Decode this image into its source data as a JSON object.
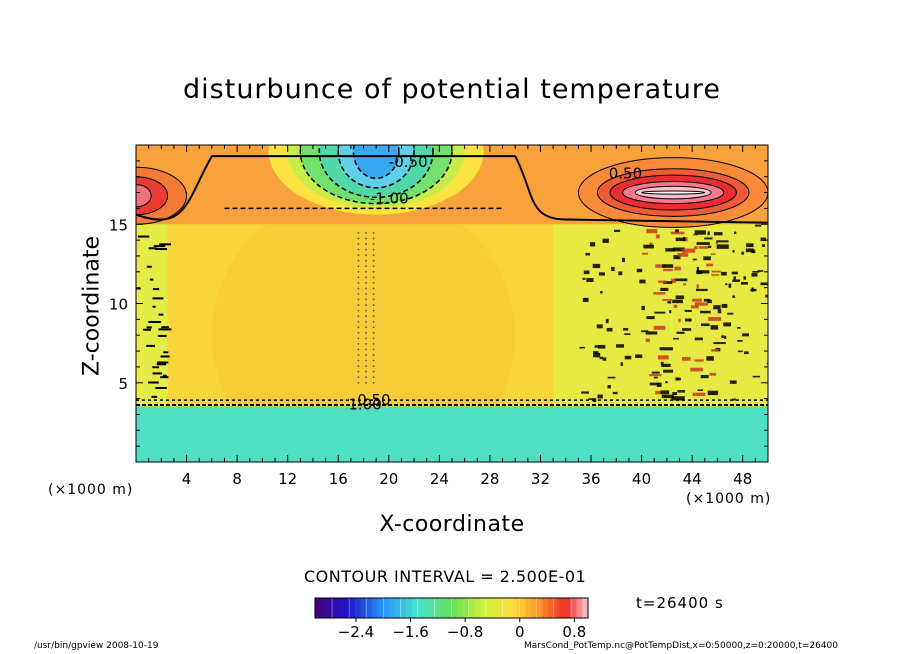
{
  "chart_data": {
    "type": "heatmap",
    "title": "disturbunce of potential temperature",
    "xlabel": "X-coordinate",
    "ylabel": "Z-coordinate",
    "x_unit_left": "(×1000 m)",
    "x_unit_right": "(×1000 m)",
    "xlim": [
      0,
      50
    ],
    "ylim": [
      0,
      20
    ],
    "xticks": [
      {
        "value": 4,
        "label": "4"
      },
      {
        "value": 8,
        "label": "8"
      },
      {
        "value": 12,
        "label": "12"
      },
      {
        "value": 16,
        "label": "16"
      },
      {
        "value": 20,
        "label": "20"
      },
      {
        "value": 24,
        "label": "24"
      },
      {
        "value": 28,
        "label": "28"
      },
      {
        "value": 32,
        "label": "32"
      },
      {
        "value": 36,
        "label": "36"
      },
      {
        "value": 40,
        "label": "40"
      },
      {
        "value": 44,
        "label": "44"
      },
      {
        "value": 48,
        "label": "48"
      }
    ],
    "yticks": [
      {
        "value": 5,
        "label": "5"
      },
      {
        "value": 10,
        "label": "10"
      },
      {
        "value": 15,
        "label": "15"
      }
    ],
    "contour_interval_text": "CONTOUR INTERVAL = 2.500E-01",
    "contour_labels": [
      {
        "x": 20.0,
        "y": 18.6,
        "text": "-0.50"
      },
      {
        "x": 18.5,
        "y": 16.3,
        "text": "-1.00"
      },
      {
        "x": 37.4,
        "y": 17.9,
        "text": "0.50"
      },
      {
        "x": 17.5,
        "y": 3.6,
        "text": "0.50"
      },
      {
        "x": 16.8,
        "y": 3.3,
        "text": "1.00"
      }
    ],
    "regions": [
      {
        "name": "upper-left warm anomaly",
        "x_range": [
          0,
          4
        ],
        "z_range": [
          14,
          20
        ],
        "value": 1.0
      },
      {
        "name": "upper-center cold anomaly",
        "x_range": [
          12,
          26
        ],
        "z_range": [
          16,
          20
        ],
        "value": -1.4
      },
      {
        "name": "upper-right warm anomaly",
        "x_range": [
          33,
          50
        ],
        "z_range": [
          15,
          20
        ],
        "value": 1.0
      },
      {
        "name": "middle neutral region",
        "x_range": [
          0,
          50
        ],
        "z_range": [
          3.5,
          15
        ],
        "value": 0.3
      },
      {
        "name": "lower cold layer",
        "x_range": [
          0,
          50
        ],
        "z_range": [
          0,
          3.5
        ],
        "value": -1.2
      }
    ],
    "colorbar": {
      "min": -3.0,
      "max": 1.0,
      "ticks": [
        {
          "value": -2.4,
          "label": "−2.4"
        },
        {
          "value": -1.6,
          "label": "−1.6"
        },
        {
          "value": -0.8,
          "label": "−0.8"
        },
        {
          "value": 0,
          "label": "0"
        },
        {
          "value": 0.8,
          "label": "0.8"
        }
      ]
    },
    "time_text": "t=26400 s",
    "footer_left": "/usr/bin/gpview   2008-10-19",
    "footer_right": "MarsCond_PotTemp.nc@PotTempDist,x=0:50000,z=0:20000,t=26400"
  }
}
